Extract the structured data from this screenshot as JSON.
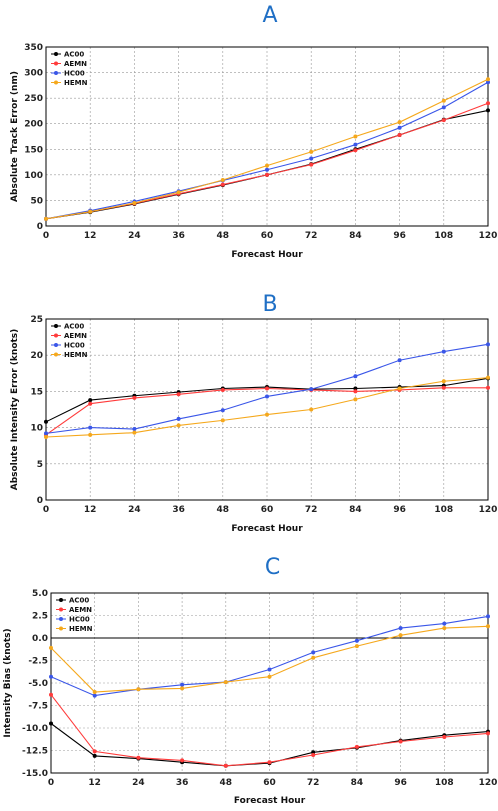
{
  "chart_data": [
    {
      "type": "line",
      "title": "A",
      "xlabel": "Forecast Hour",
      "ylabel": "Absolute Track Error (nm)",
      "x": [
        0,
        12,
        24,
        36,
        48,
        60,
        72,
        84,
        96,
        108,
        120
      ],
      "xlim": [
        0,
        120
      ],
      "ylim": [
        0,
        350
      ],
      "yticks": [
        0,
        50,
        100,
        150,
        200,
        250,
        300,
        350
      ],
      "grid": true,
      "legend_position": "top-left",
      "series": [
        {
          "name": "AC00",
          "color": "#000000",
          "values": [
            14,
            27,
            43,
            62,
            80,
            100,
            121,
            150,
            178,
            208,
            226
          ]
        },
        {
          "name": "AEMN",
          "color": "#ff3b3b",
          "values": [
            14,
            28,
            44,
            63,
            81,
            100,
            120,
            148,
            178,
            207,
            240
          ]
        },
        {
          "name": "HC00",
          "color": "#3a56e8",
          "values": [
            14,
            30,
            48,
            68,
            89,
            110,
            132,
            159,
            192,
            232,
            281
          ]
        },
        {
          "name": "HEMN",
          "color": "#f5a81c",
          "values": [
            14,
            28,
            45,
            66,
            90,
            118,
            145,
            175,
            203,
            245,
            287
          ]
        }
      ]
    },
    {
      "type": "line",
      "title": "B",
      "xlabel": "Forecast Hour",
      "ylabel": "Absolute Intensity Error (knots)",
      "x": [
        0,
        12,
        24,
        36,
        48,
        60,
        72,
        84,
        96,
        108,
        120
      ],
      "xlim": [
        0,
        120
      ],
      "ylim": [
        0,
        25
      ],
      "yticks": [
        0,
        5,
        10,
        15,
        20,
        25
      ],
      "grid": true,
      "legend_position": "top-left",
      "series": [
        {
          "name": "AC00",
          "color": "#000000",
          "values": [
            10.8,
            13.8,
            14.4,
            14.9,
            15.4,
            15.6,
            15.3,
            15.4,
            15.6,
            15.8,
            16.8
          ]
        },
        {
          "name": "AEMN",
          "color": "#ff3b3b",
          "values": [
            9.0,
            13.3,
            14.1,
            14.6,
            15.2,
            15.4,
            15.2,
            15.0,
            15.2,
            15.5,
            15.5
          ]
        },
        {
          "name": "HC00",
          "color": "#3a56e8",
          "values": [
            9.2,
            10.0,
            9.8,
            11.2,
            12.4,
            14.3,
            15.3,
            17.1,
            19.3,
            20.5,
            21.5
          ]
        },
        {
          "name": "HEMN",
          "color": "#f5a81c",
          "values": [
            8.7,
            9.0,
            9.3,
            10.3,
            11.0,
            11.8,
            12.5,
            13.9,
            15.4,
            16.4,
            16.9
          ]
        }
      ]
    },
    {
      "type": "line",
      "title": "C",
      "xlabel": "Forecast Hour",
      "ylabel": "Intensity Bias (knots)",
      "x": [
        0,
        12,
        24,
        36,
        48,
        60,
        72,
        84,
        96,
        108,
        120
      ],
      "xlim": [
        0,
        120
      ],
      "ylim": [
        -15,
        5
      ],
      "yticks": [
        -15.0,
        -12.5,
        -10.0,
        -7.5,
        -5.0,
        -2.5,
        0.0,
        2.5,
        5.0
      ],
      "grid": true,
      "zero_line": true,
      "legend_position": "top-left",
      "series": [
        {
          "name": "AC00",
          "color": "#000000",
          "values": [
            -9.5,
            -13.1,
            -13.4,
            -13.8,
            -14.2,
            -13.9,
            -12.7,
            -12.2,
            -11.4,
            -10.8,
            -10.4
          ]
        },
        {
          "name": "AEMN",
          "color": "#ff3b3b",
          "values": [
            -6.3,
            -12.6,
            -13.3,
            -13.6,
            -14.2,
            -13.8,
            -13.0,
            -12.1,
            -11.5,
            -11.0,
            -10.6
          ]
        },
        {
          "name": "HC00",
          "color": "#3a56e8",
          "values": [
            -4.3,
            -6.4,
            -5.7,
            -5.2,
            -4.9,
            -3.5,
            -1.6,
            -0.3,
            1.1,
            1.6,
            2.4
          ]
        },
        {
          "name": "HEMN",
          "color": "#f5a81c",
          "values": [
            -1.1,
            -6.0,
            -5.7,
            -5.6,
            -4.9,
            -4.3,
            -2.2,
            -0.9,
            0.3,
            1.1,
            1.3
          ]
        }
      ]
    }
  ]
}
